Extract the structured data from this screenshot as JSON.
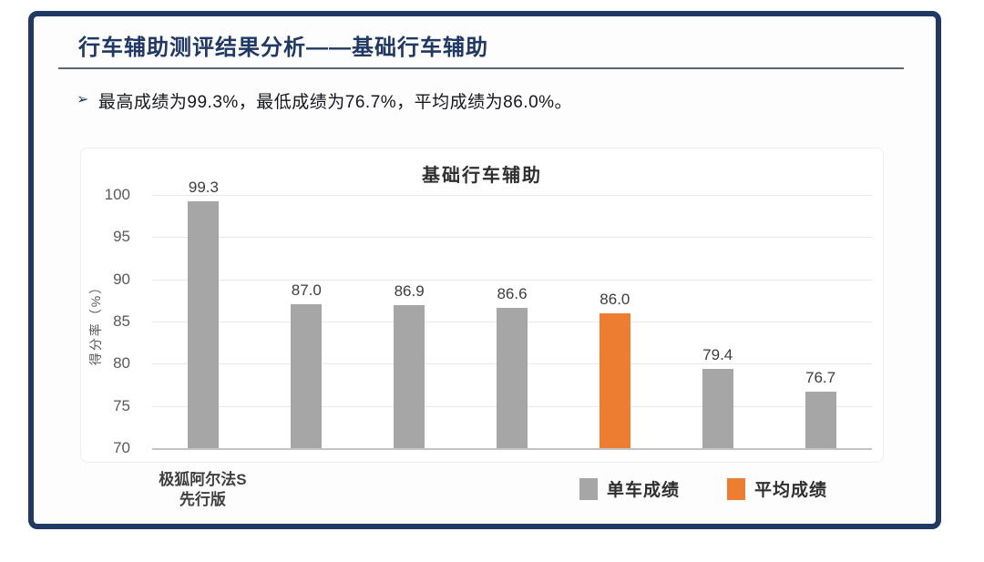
{
  "page": {
    "title": "行车辅助测评结果分析——基础行车辅助",
    "bullet": {
      "icon": "➢",
      "text": "最高成绩为99.3%，最低成绩为76.7%，平均成绩为86.0%。"
    },
    "colors": {
      "accent_navy": "#1f3864",
      "bar_gray": "#a6a6a6",
      "bar_orange": "#ed7d31"
    }
  },
  "chart_data": {
    "type": "bar",
    "title": "基础行车辅助",
    "xlabel": "",
    "ylabel": "得分率（%）",
    "ylim": [
      70,
      100
    ],
    "yticks": [
      100,
      95,
      90,
      85,
      80,
      75,
      70
    ],
    "grid": true,
    "legend_position": "bottom-right",
    "categories": [
      "极狐阿尔法S\n先行版",
      "",
      "",
      "",
      "",
      "",
      ""
    ],
    "bars": [
      {
        "value": 99.3,
        "label": "99.3",
        "series": "单车成绩",
        "color": "#a6a6a6"
      },
      {
        "value": 87.0,
        "label": "87.0",
        "series": "单车成绩",
        "color": "#a6a6a6"
      },
      {
        "value": 86.9,
        "label": "86.9",
        "series": "单车成绩",
        "color": "#a6a6a6"
      },
      {
        "value": 86.6,
        "label": "86.6",
        "series": "单车成绩",
        "color": "#a6a6a6"
      },
      {
        "value": 86.0,
        "label": "86.0",
        "series": "平均成绩",
        "color": "#ed7d31"
      },
      {
        "value": 79.4,
        "label": "79.4",
        "series": "单车成绩",
        "color": "#a6a6a6"
      },
      {
        "value": 76.7,
        "label": "76.7",
        "series": "单车成绩",
        "color": "#a6a6a6"
      }
    ],
    "legend": [
      {
        "label": "单车成绩",
        "color": "#a6a6a6"
      },
      {
        "label": "平均成绩",
        "color": "#ed7d31"
      }
    ]
  }
}
